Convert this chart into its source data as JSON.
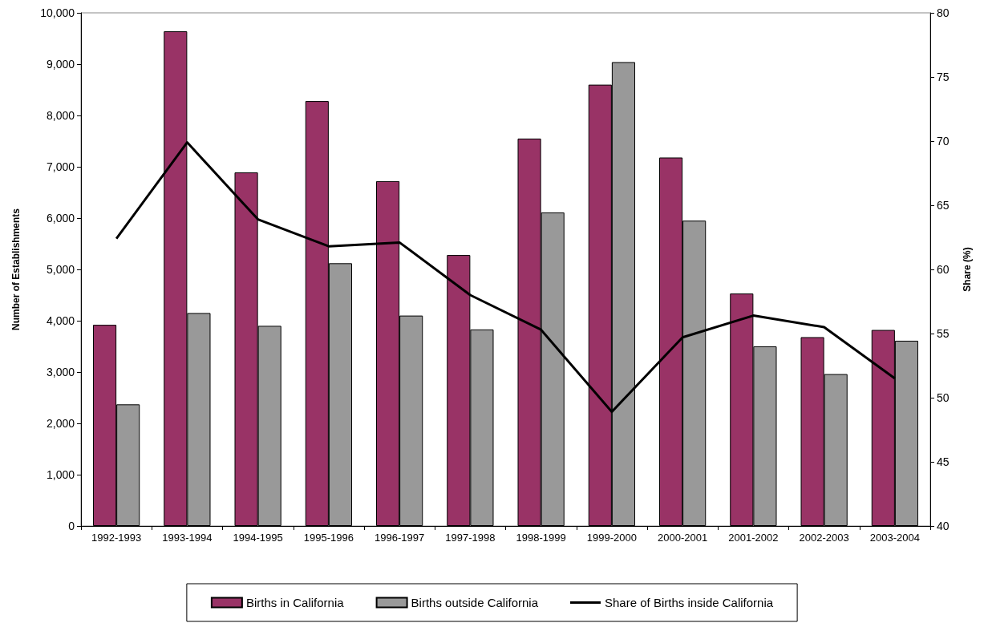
{
  "chart_data": {
    "type": "bar",
    "categories": [
      "1992-1993",
      "1993-1994",
      "1994-1995",
      "1995-1996",
      "1996-1997",
      "1997-1998",
      "1998-1999",
      "1999-2000",
      "2000-2001",
      "2001-2002",
      "2002-2003",
      "2003-2004"
    ],
    "series": [
      {
        "name": "Births in California",
        "color": "#993366",
        "values": [
          3920,
          9640,
          6890,
          8280,
          6720,
          5280,
          7550,
          8600,
          7180,
          4530,
          3680,
          3820
        ]
      },
      {
        "name": "Births outside California",
        "color": "#999999",
        "values": [
          2370,
          4150,
          3900,
          5120,
          4100,
          3830,
          6110,
          9040,
          5950,
          3500,
          2960,
          3610
        ]
      },
      {
        "name": "Share of Births inside California",
        "type": "line",
        "axis": "y2",
        "color": "#000000",
        "marker": "none",
        "line_style": "solid",
        "values": [
          62.4,
          69.9,
          63.9,
          61.8,
          62.1,
          58.0,
          55.3,
          48.9,
          54.7,
          56.4,
          55.5,
          51.5
        ]
      }
    ],
    "ylabel": "Number of Establishments",
    "y2label": "Share (%)",
    "ylim": [
      0,
      10000
    ],
    "yticks": [
      0,
      {
        "value": 1000,
        "label": "1,000"
      },
      {
        "value": 2000,
        "label": "2,000"
      },
      {
        "value": 3000,
        "label": "3,000"
      },
      {
        "value": 4000,
        "label": "4,000"
      },
      {
        "value": 5000,
        "label": "5,000"
      },
      {
        "value": 6000,
        "label": "6,000"
      },
      {
        "value": 7000,
        "label": "7,000"
      },
      {
        "value": 8000,
        "label": "8,000"
      },
      {
        "value": 9000,
        "label": "9,000"
      },
      {
        "value": 10000,
        "label": "10,000"
      }
    ],
    "y2lim": [
      40,
      80
    ],
    "y2ticks": [
      40,
      45,
      50,
      55,
      60,
      65,
      70,
      75,
      80
    ],
    "grid": false,
    "legend": "bottom"
  }
}
